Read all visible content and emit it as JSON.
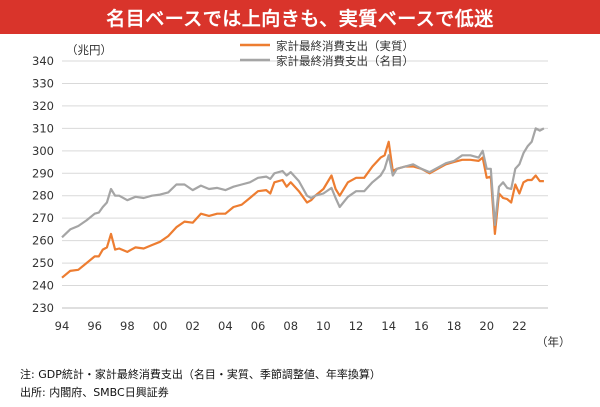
{
  "header": {
    "title": "名目ベースでは上向きも、実質ベースで低迷"
  },
  "footer": {
    "note": "注: GDP統計・家計最終消費支出（名目・実質、季節調整値、年率換算）",
    "source": "出所: 内閣府、SMBC日興証券"
  },
  "colors": {
    "title_bg": "#d9342b",
    "real": "#ed7d31",
    "nominal": "#a5a5a5"
  },
  "chart_data": {
    "type": "line",
    "ylabel": "（兆円）",
    "xlabel": "（年）",
    "ylim": [
      230,
      340
    ],
    "yticks": [
      230,
      240,
      250,
      260,
      270,
      280,
      290,
      300,
      310,
      320,
      330,
      340
    ],
    "xlim": [
      1994,
      2023.75
    ],
    "xticks": [
      1994,
      1996,
      1998,
      2000,
      2002,
      2004,
      2006,
      2008,
      2010,
      2012,
      2014,
      2016,
      2018,
      2020,
      2022
    ],
    "xtick_labels": [
      "94",
      "96",
      "98",
      "00",
      "02",
      "04",
      "06",
      "08",
      "10",
      "12",
      "14",
      "16",
      "18",
      "20",
      "22"
    ],
    "grid": "horizontal",
    "legend": "top-center",
    "series": [
      {
        "name": "家計最終消費支出（実質）",
        "color": "#ed7d31",
        "points": [
          [
            1994.0,
            243.5
          ],
          [
            1994.5,
            246.5
          ],
          [
            1995.0,
            247.0
          ],
          [
            1995.5,
            250.0
          ],
          [
            1996.0,
            253.0
          ],
          [
            1996.25,
            253.0
          ],
          [
            1996.5,
            256.0
          ],
          [
            1996.75,
            257.0
          ],
          [
            1997.0,
            263.0
          ],
          [
            1997.25,
            256.0
          ],
          [
            1997.5,
            256.5
          ],
          [
            1998.0,
            255.0
          ],
          [
            1998.25,
            256.0
          ],
          [
            1998.5,
            257.0
          ],
          [
            1999.0,
            256.5
          ],
          [
            1999.5,
            258.0
          ],
          [
            2000.0,
            259.5
          ],
          [
            2000.5,
            262.0
          ],
          [
            2001.0,
            266.0
          ],
          [
            2001.5,
            268.5
          ],
          [
            2002.0,
            268.0
          ],
          [
            2002.5,
            272.0
          ],
          [
            2003.0,
            271.0
          ],
          [
            2003.5,
            272.0
          ],
          [
            2004.0,
            272.0
          ],
          [
            2004.5,
            275.0
          ],
          [
            2005.0,
            276.0
          ],
          [
            2005.5,
            279.0
          ],
          [
            2006.0,
            282.0
          ],
          [
            2006.5,
            282.5
          ],
          [
            2006.75,
            281.0
          ],
          [
            2007.0,
            286.0
          ],
          [
            2007.5,
            287.0
          ],
          [
            2007.75,
            284.0
          ],
          [
            2008.0,
            286.0
          ],
          [
            2008.5,
            282.0
          ],
          [
            2009.0,
            277.0
          ],
          [
            2009.25,
            278.0
          ],
          [
            2009.5,
            280.0
          ],
          [
            2010.0,
            283.0
          ],
          [
            2010.5,
            289.0
          ],
          [
            2010.75,
            283.0
          ],
          [
            2011.0,
            280.0
          ],
          [
            2011.5,
            286.0
          ],
          [
            2012.0,
            288.0
          ],
          [
            2012.5,
            288.0
          ],
          [
            2013.0,
            293.0
          ],
          [
            2013.5,
            297.0
          ],
          [
            2013.75,
            298.0
          ],
          [
            2014.0,
            304.0
          ],
          [
            2014.25,
            291.0
          ],
          [
            2014.5,
            292.0
          ],
          [
            2015.0,
            293.0
          ],
          [
            2015.5,
            293.0
          ],
          [
            2016.0,
            292.0
          ],
          [
            2016.5,
            290.0
          ],
          [
            2017.0,
            292.0
          ],
          [
            2017.5,
            294.0
          ],
          [
            2018.0,
            295.0
          ],
          [
            2018.5,
            296.0
          ],
          [
            2019.0,
            296.0
          ],
          [
            2019.5,
            295.5
          ],
          [
            2019.75,
            297.0
          ],
          [
            2020.0,
            288.0
          ],
          [
            2020.25,
            288.5
          ],
          [
            2020.5,
            263.0
          ],
          [
            2020.75,
            281.0
          ],
          [
            2021.0,
            279.0
          ],
          [
            2021.25,
            278.5
          ],
          [
            2021.5,
            277.0
          ],
          [
            2021.75,
            285.0
          ],
          [
            2022.0,
            281.0
          ],
          [
            2022.25,
            286.0
          ],
          [
            2022.5,
            287.0
          ],
          [
            2022.75,
            287.0
          ],
          [
            2023.0,
            289.0
          ],
          [
            2023.25,
            286.5
          ],
          [
            2023.5,
            286.5
          ]
        ]
      },
      {
        "name": "家計最終消費支出（名目）",
        "color": "#a5a5a5",
        "points": [
          [
            1994.0,
            261.5
          ],
          [
            1994.5,
            265.0
          ],
          [
            1995.0,
            266.5
          ],
          [
            1995.5,
            269.0
          ],
          [
            1996.0,
            272.0
          ],
          [
            1996.25,
            272.5
          ],
          [
            1996.5,
            275.0
          ],
          [
            1996.75,
            277.0
          ],
          [
            1997.0,
            283.0
          ],
          [
            1997.25,
            280.0
          ],
          [
            1997.5,
            280.0
          ],
          [
            1998.0,
            278.0
          ],
          [
            1998.5,
            279.5
          ],
          [
            1999.0,
            279.0
          ],
          [
            1999.5,
            280.0
          ],
          [
            2000.0,
            280.5
          ],
          [
            2000.5,
            281.5
          ],
          [
            2001.0,
            285.0
          ],
          [
            2001.5,
            285.0
          ],
          [
            2002.0,
            282.5
          ],
          [
            2002.5,
            284.5
          ],
          [
            2003.0,
            283.0
          ],
          [
            2003.5,
            283.5
          ],
          [
            2004.0,
            282.5
          ],
          [
            2004.5,
            284.0
          ],
          [
            2005.0,
            285.0
          ],
          [
            2005.5,
            286.0
          ],
          [
            2006.0,
            288.0
          ],
          [
            2006.5,
            288.5
          ],
          [
            2006.75,
            287.5
          ],
          [
            2007.0,
            290.0
          ],
          [
            2007.5,
            291.0
          ],
          [
            2007.75,
            289.0
          ],
          [
            2008.0,
            290.5
          ],
          [
            2008.5,
            286.5
          ],
          [
            2009.0,
            280.0
          ],
          [
            2009.25,
            279.0
          ],
          [
            2009.5,
            280.0
          ],
          [
            2010.0,
            281.0
          ],
          [
            2010.5,
            283.5
          ],
          [
            2010.75,
            279.0
          ],
          [
            2011.0,
            275.0
          ],
          [
            2011.5,
            279.5
          ],
          [
            2012.0,
            282.0
          ],
          [
            2012.5,
            282.0
          ],
          [
            2013.0,
            286.0
          ],
          [
            2013.5,
            289.0
          ],
          [
            2013.75,
            292.0
          ],
          [
            2014.0,
            298.0
          ],
          [
            2014.25,
            289.0
          ],
          [
            2014.5,
            292.0
          ],
          [
            2015.0,
            293.0
          ],
          [
            2015.5,
            294.0
          ],
          [
            2016.0,
            292.0
          ],
          [
            2016.5,
            290.5
          ],
          [
            2017.0,
            292.5
          ],
          [
            2017.5,
            294.5
          ],
          [
            2018.0,
            295.5
          ],
          [
            2018.5,
            298.0
          ],
          [
            2019.0,
            298.0
          ],
          [
            2019.5,
            297.0
          ],
          [
            2019.75,
            300.0
          ],
          [
            2020.0,
            292.0
          ],
          [
            2020.25,
            292.0
          ],
          [
            2020.5,
            267.0
          ],
          [
            2020.75,
            284.0
          ],
          [
            2021.0,
            286.0
          ],
          [
            2021.25,
            283.5
          ],
          [
            2021.5,
            283.0
          ],
          [
            2021.75,
            292.0
          ],
          [
            2022.0,
            294.0
          ],
          [
            2022.25,
            299.0
          ],
          [
            2022.5,
            302.0
          ],
          [
            2022.75,
            304.0
          ],
          [
            2023.0,
            310.0
          ],
          [
            2023.25,
            309.0
          ],
          [
            2023.5,
            310.0
          ]
        ]
      }
    ]
  }
}
